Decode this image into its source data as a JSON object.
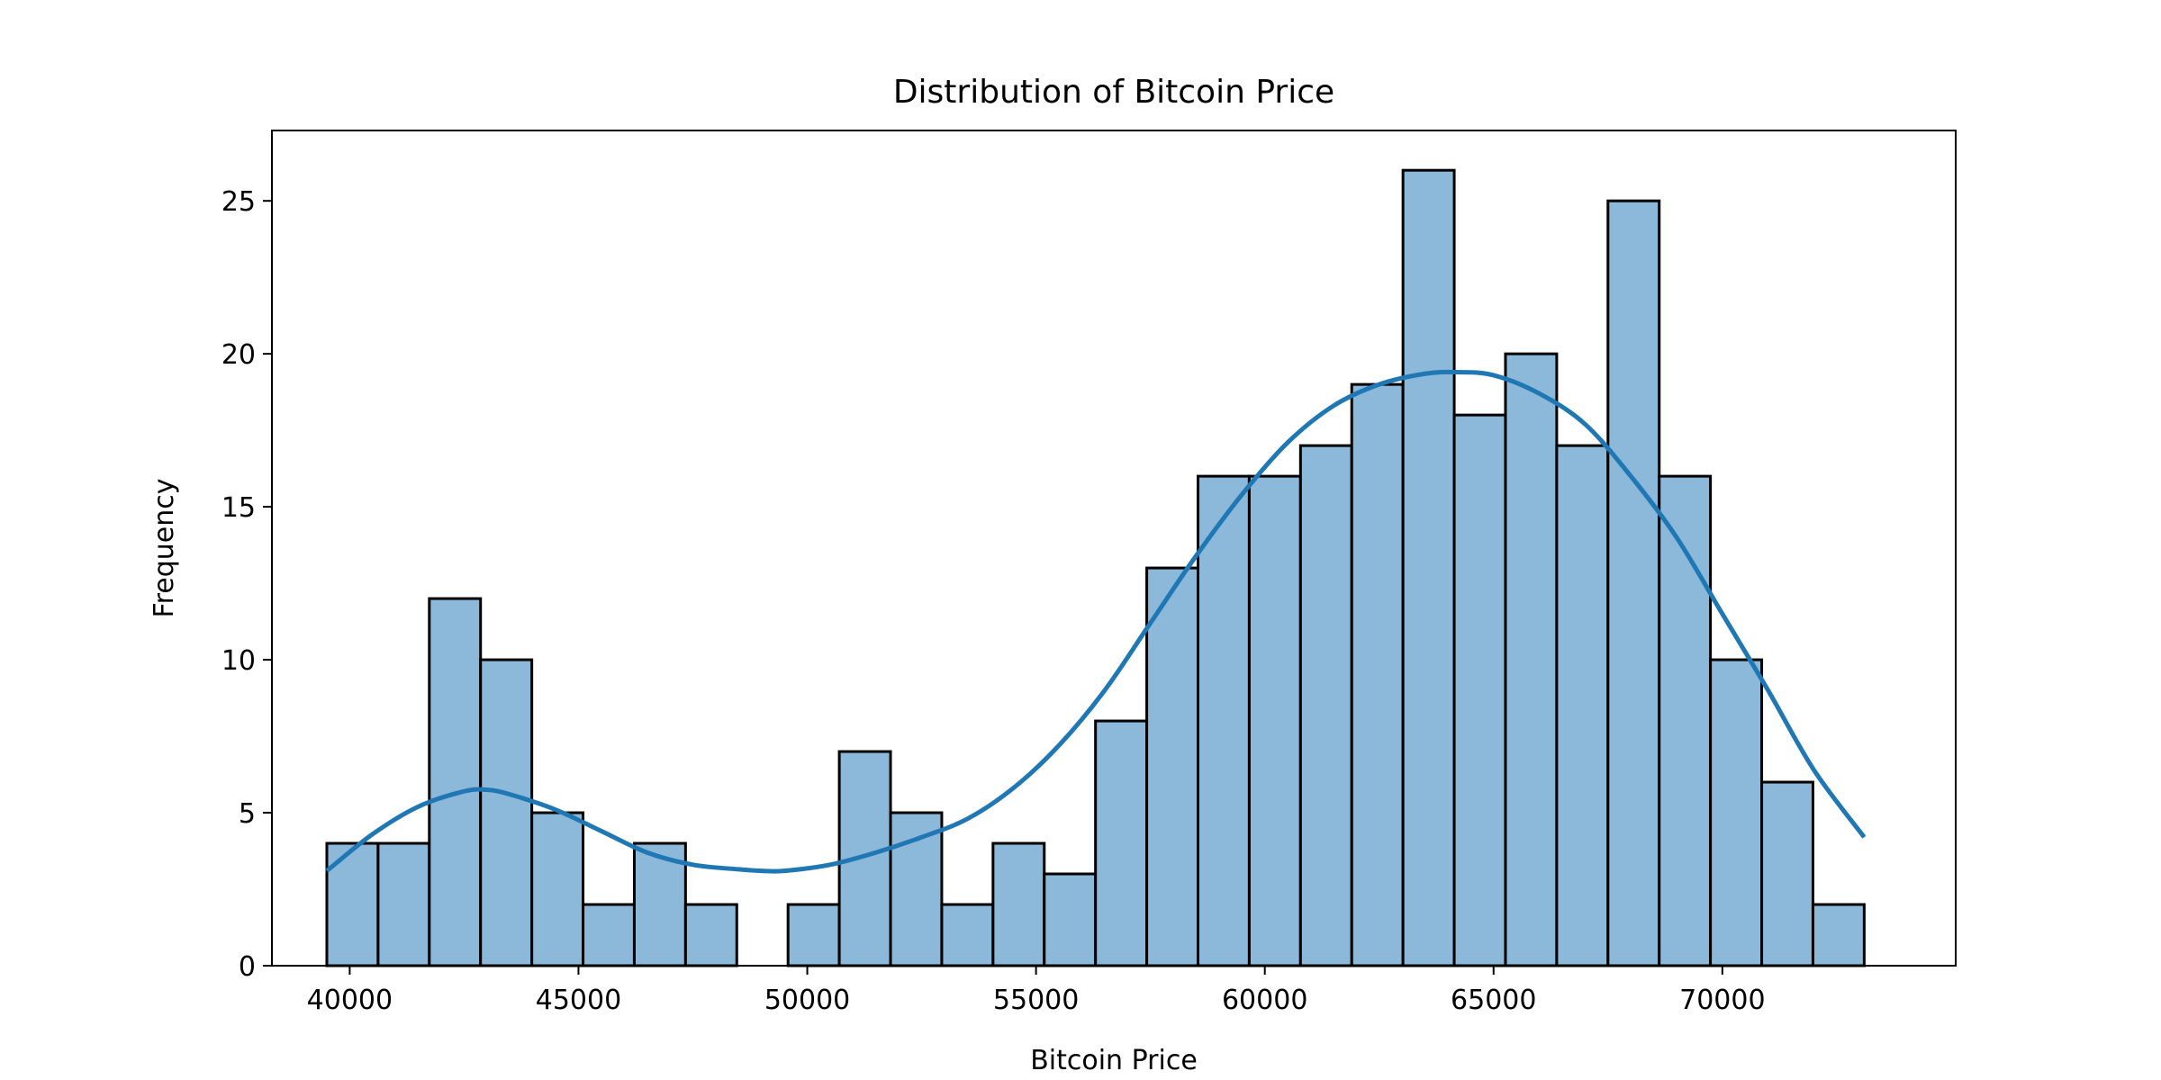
{
  "chart_data": {
    "type": "bar",
    "title": "Distribution of Bitcoin Price",
    "xlabel": "Bitcoin Price",
    "ylabel": "Frequency",
    "xlim": [
      38300,
      75100
    ],
    "ylim": [
      0,
      27.3
    ],
    "x_ticks": [
      40000,
      45000,
      50000,
      55000,
      60000,
      65000,
      70000
    ],
    "y_ticks": [
      0,
      5,
      10,
      15,
      20,
      25
    ],
    "grid": false,
    "bins": {
      "start": 39500,
      "end": 73100,
      "counts": [
        4,
        4,
        12,
        10,
        5,
        2,
        4,
        2,
        0,
        2,
        7,
        5,
        2,
        4,
        3,
        8,
        13,
        16,
        16,
        17,
        19,
        26,
        18,
        20,
        17,
        25,
        16,
        10,
        6,
        2
      ]
    },
    "kde": {
      "x": [
        39500,
        40500,
        41500,
        42500,
        43000,
        43500,
        44500,
        45500,
        46500,
        47500,
        48500,
        49000,
        49500,
        50500,
        51500,
        52500,
        53500,
        54500,
        55500,
        56500,
        57500,
        58500,
        59500,
        60500,
        61500,
        62500,
        63500,
        64200,
        65000,
        66000,
        67000,
        68000,
        69000,
        70000,
        71000,
        72000,
        73100
      ],
      "y": [
        3.1,
        4.3,
        5.2,
        5.7,
        5.75,
        5.6,
        5.1,
        4.4,
        3.7,
        3.3,
        3.15,
        3.1,
        3.1,
        3.3,
        3.7,
        4.2,
        4.8,
        5.8,
        7.2,
        9.0,
        11.2,
        13.4,
        15.4,
        17.1,
        18.3,
        19.0,
        19.35,
        19.4,
        19.3,
        18.7,
        17.7,
        16.0,
        14.0,
        11.5,
        9.0,
        6.4,
        4.2
      ]
    },
    "colors": {
      "bar_fill": "#8cb8da",
      "bar_edge": "#000000",
      "kde_line": "#1f77b4"
    }
  }
}
